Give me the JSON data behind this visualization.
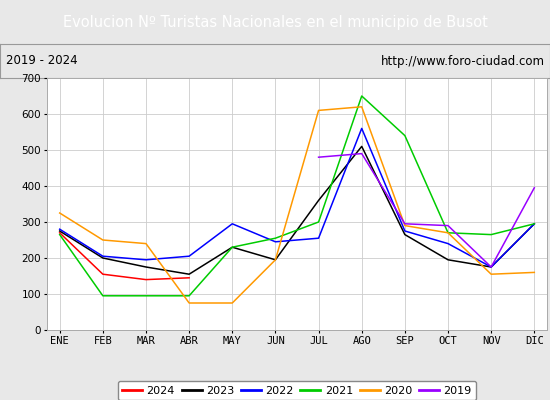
{
  "title": "Evolucion Nº Turistas Nacionales en el municipio de Busot",
  "subtitle_left": "2019 - 2024",
  "subtitle_right": "http://www.foro-ciudad.com",
  "title_bg_color": "#4472c4",
  "title_text_color": "#ffffff",
  "months": [
    "ENE",
    "FEB",
    "MAR",
    "ABR",
    "MAY",
    "JUN",
    "JUL",
    "AGO",
    "SEP",
    "OCT",
    "NOV",
    "DIC"
  ],
  "ylim": [
    0,
    700
  ],
  "yticks": [
    0,
    100,
    200,
    300,
    400,
    500,
    600,
    700
  ],
  "series": {
    "2024": {
      "color": "#ff0000",
      "values": [
        270,
        155,
        140,
        145,
        null,
        null,
        null,
        null,
        null,
        null,
        null,
        null
      ]
    },
    "2023": {
      "color": "#000000",
      "values": [
        275,
        200,
        175,
        155,
        230,
        195,
        360,
        510,
        265,
        195,
        175,
        295
      ]
    },
    "2022": {
      "color": "#0000ff",
      "values": [
        280,
        205,
        195,
        205,
        295,
        245,
        255,
        560,
        275,
        240,
        175,
        295
      ]
    },
    "2021": {
      "color": "#00cc00",
      "values": [
        265,
        95,
        95,
        95,
        230,
        255,
        300,
        650,
        540,
        270,
        265,
        295
      ]
    },
    "2020": {
      "color": "#ff9900",
      "values": [
        325,
        250,
        240,
        75,
        75,
        195,
        610,
        620,
        290,
        270,
        155,
        160
      ]
    },
    "2019": {
      "color": "#9900ff",
      "values": [
        null,
        null,
        null,
        null,
        null,
        null,
        480,
        490,
        295,
        290,
        175,
        395
      ]
    }
  },
  "legend_order": [
    "2024",
    "2023",
    "2022",
    "2021",
    "2020",
    "2019"
  ],
  "outer_bg_color": "#e8e8e8",
  "plot_bg_color": "#ffffff",
  "grid_color": "#cccccc",
  "title_fontsize": 10.5,
  "subtitle_fontsize": 8.5,
  "tick_fontsize": 7.5
}
